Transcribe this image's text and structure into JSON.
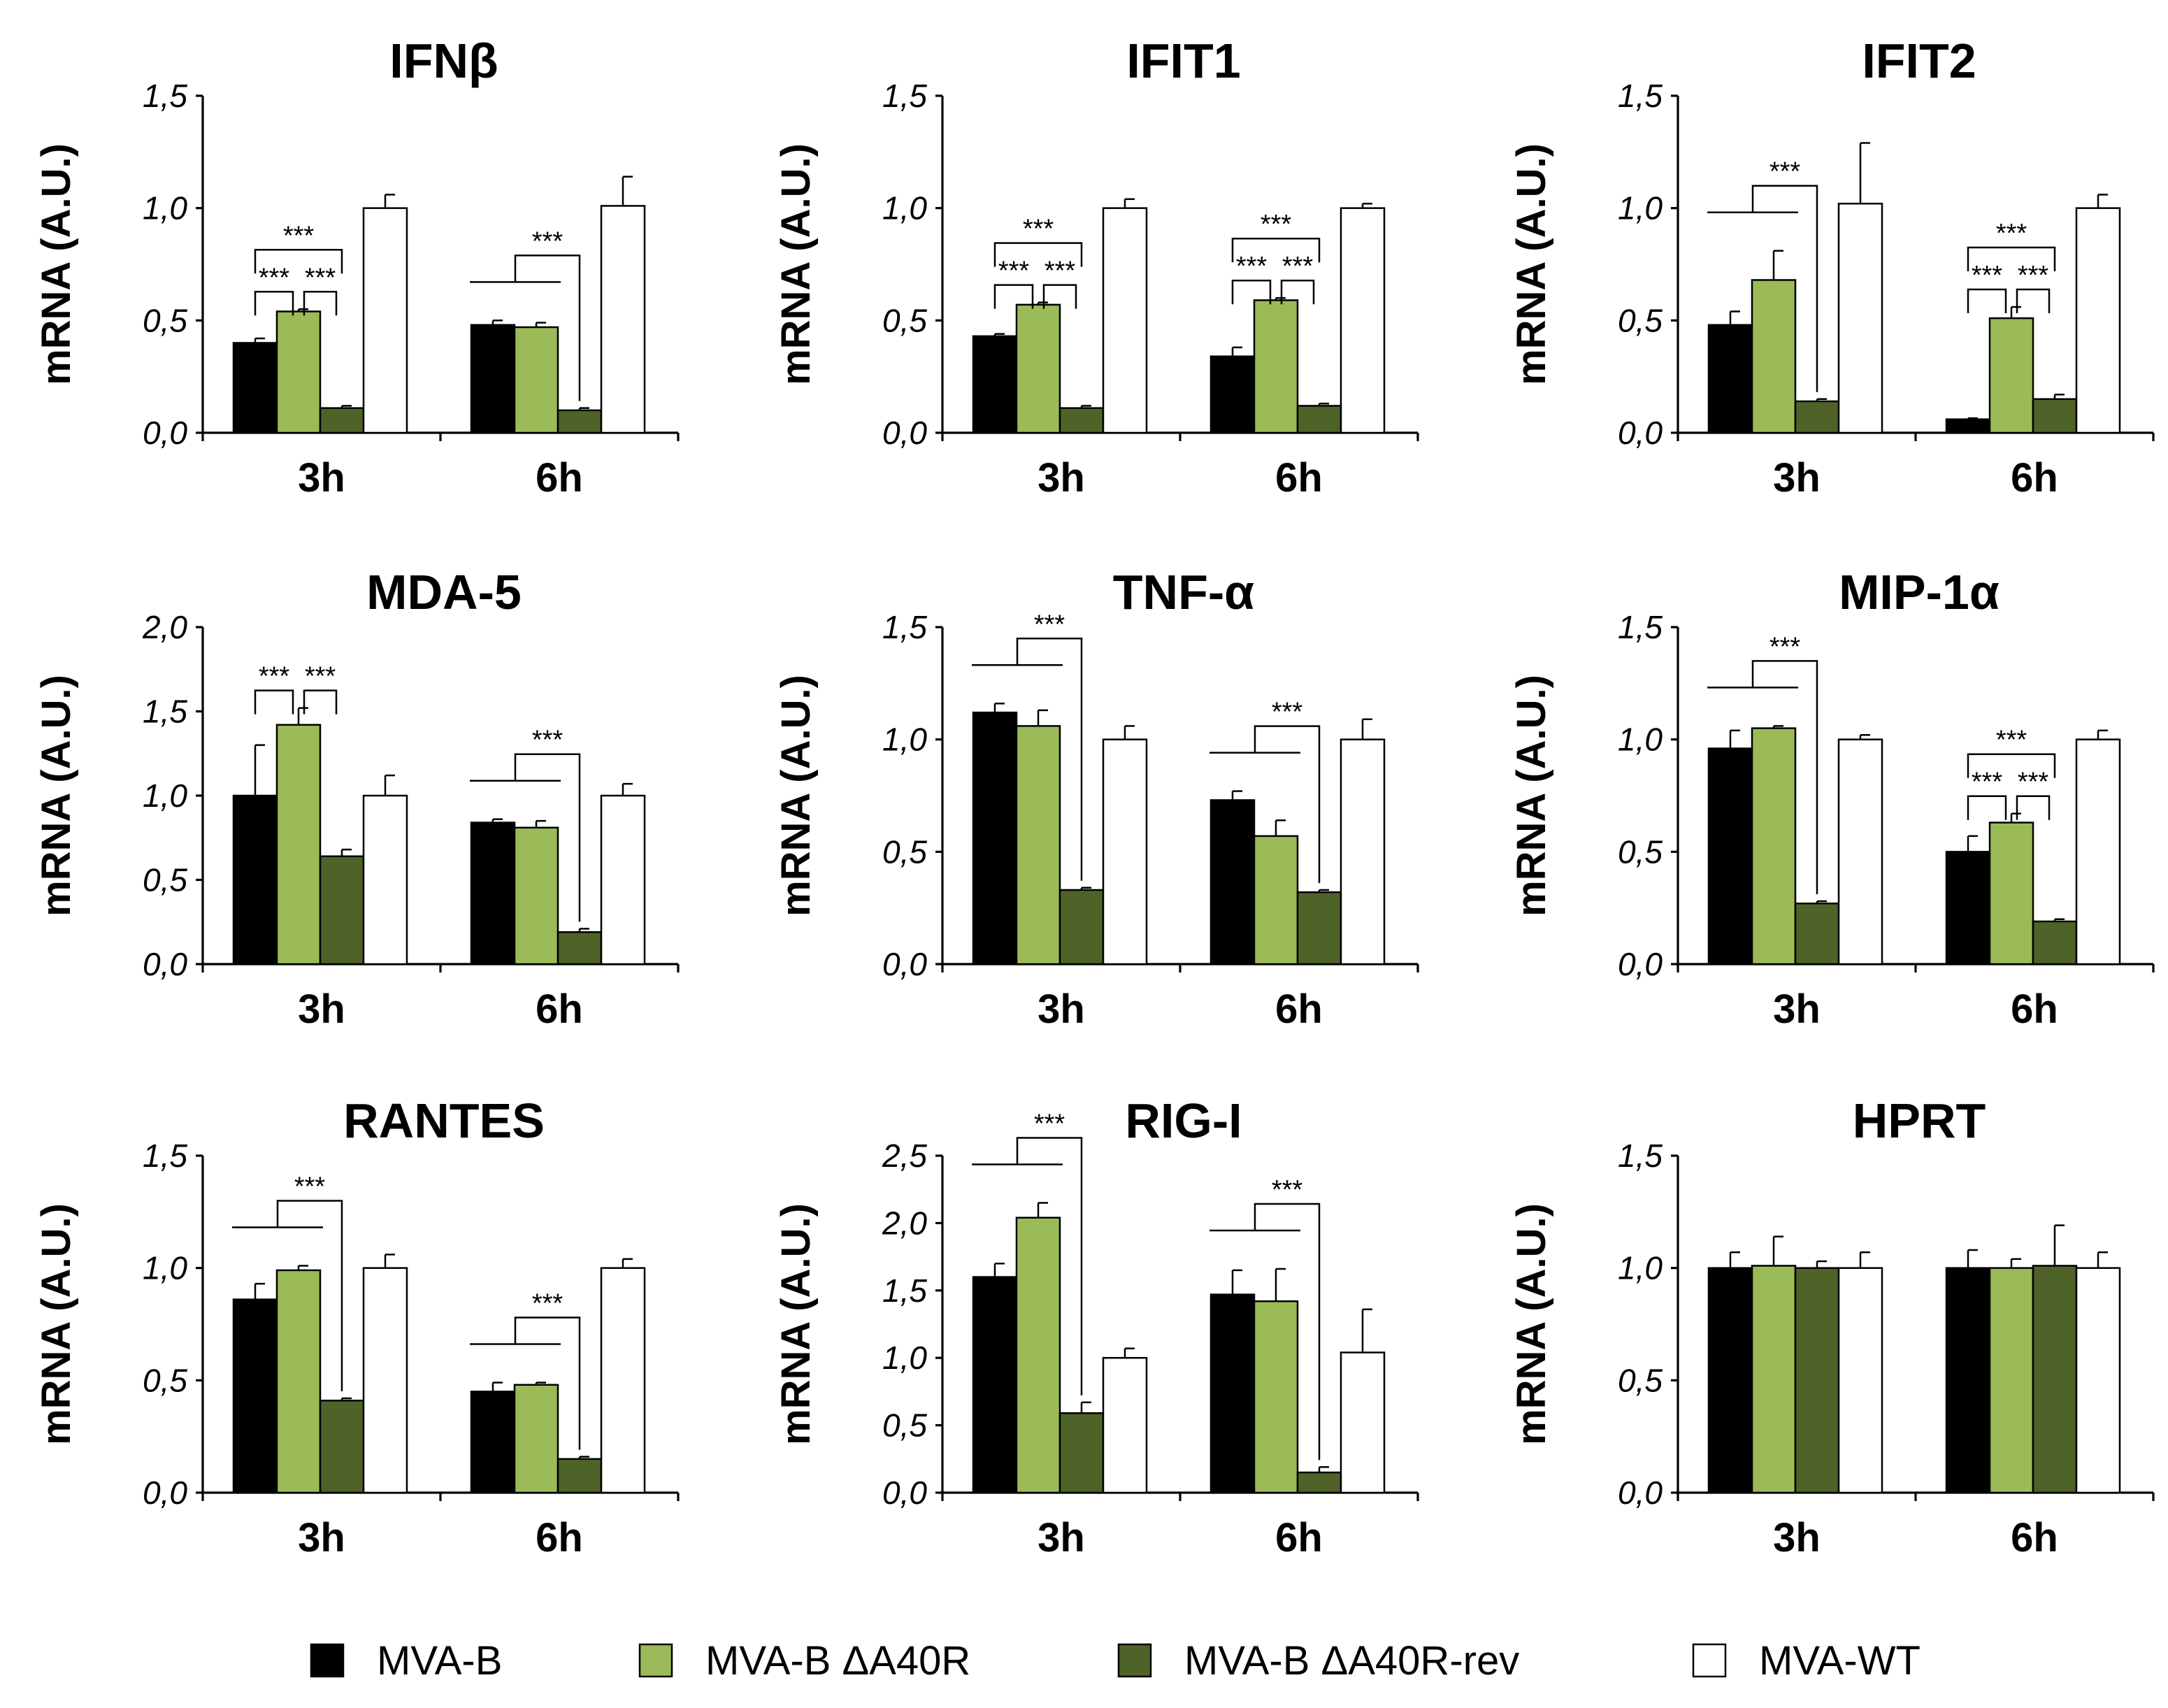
{
  "chart_data": {
    "type": "bar",
    "series": [
      {
        "name": "MVA-B",
        "color": "#000000"
      },
      {
        "name": "MVA-B ΔA40R",
        "color": "#9bbb59"
      },
      {
        "name": "MVA-B ΔA40R-rev",
        "color": "#4f6228"
      },
      {
        "name": "MVA-WT",
        "color": "#ffffff"
      }
    ],
    "panels": [
      {
        "title": "IFNβ",
        "ylabel": "mRNA (A.U.)",
        "ylim": [
          0,
          1.5
        ],
        "yticks": [
          "0,0",
          "0,5",
          "1,0",
          "1,5"
        ],
        "categories": [
          "3h",
          "6h"
        ],
        "values": [
          [
            0.4,
            0.54,
            0.11,
            1.0
          ],
          [
            0.48,
            0.47,
            0.1,
            1.01
          ]
        ],
        "errors": [
          [
            0.02,
            0.01,
            0.01,
            0.06
          ],
          [
            0.02,
            0.02,
            0.01,
            0.13
          ]
        ],
        "significance": [
          {
            "group": 0,
            "type": "simple",
            "a": 0,
            "b": 1,
            "level": 0,
            "label": "***"
          },
          {
            "group": 0,
            "type": "simple",
            "a": 1,
            "b": 2,
            "level": 0,
            "label": "***"
          },
          {
            "group": 0,
            "type": "simple",
            "a": 0,
            "b": 2,
            "level": 1,
            "label": "***"
          },
          {
            "group": 1,
            "type": "combined",
            "a": 0,
            "b": 1,
            "target": 2,
            "label": "***"
          }
        ]
      },
      {
        "title": "IFIT1",
        "ylabel": "mRNA (A.U.)",
        "ylim": [
          0,
          1.5
        ],
        "yticks": [
          "0,0",
          "0,5",
          "1,0",
          "1,5"
        ],
        "categories": [
          "3h",
          "6h"
        ],
        "values": [
          [
            0.43,
            0.57,
            0.11,
            1.0
          ],
          [
            0.34,
            0.59,
            0.12,
            1.0
          ]
        ],
        "errors": [
          [
            0.01,
            0.01,
            0.01,
            0.04
          ],
          [
            0.04,
            0.01,
            0.01,
            0.02
          ]
        ],
        "significance": [
          {
            "group": 0,
            "type": "simple",
            "a": 0,
            "b": 1,
            "level": 0,
            "label": "***"
          },
          {
            "group": 0,
            "type": "simple",
            "a": 1,
            "b": 2,
            "level": 0,
            "label": "***"
          },
          {
            "group": 0,
            "type": "simple",
            "a": 0,
            "b": 2,
            "level": 1,
            "label": "***"
          },
          {
            "group": 1,
            "type": "simple",
            "a": 0,
            "b": 1,
            "level": 0,
            "label": "***"
          },
          {
            "group": 1,
            "type": "simple",
            "a": 1,
            "b": 2,
            "level": 0,
            "label": "***"
          },
          {
            "group": 1,
            "type": "simple",
            "a": 0,
            "b": 2,
            "level": 1,
            "label": "***"
          }
        ]
      },
      {
        "title": "IFIT2",
        "ylabel": "mRNA (A.U.)",
        "ylim": [
          0,
          1.5
        ],
        "yticks": [
          "0,0",
          "0,5",
          "1,0",
          "1,5"
        ],
        "categories": [
          "3h",
          "6h"
        ],
        "values": [
          [
            0.48,
            0.68,
            0.14,
            1.02
          ],
          [
            0.06,
            0.51,
            0.15,
            1.0
          ]
        ],
        "errors": [
          [
            0.06,
            0.13,
            0.01,
            0.27
          ],
          [
            0.005,
            0.05,
            0.02,
            0.06
          ]
        ],
        "significance": [
          {
            "group": 0,
            "type": "combined",
            "a": 0,
            "b": 1,
            "target": 2,
            "label": "***"
          },
          {
            "group": 1,
            "type": "simple",
            "a": 0,
            "b": 1,
            "level": 0,
            "label": "***"
          },
          {
            "group": 1,
            "type": "simple",
            "a": 1,
            "b": 2,
            "level": 0,
            "label": "***"
          },
          {
            "group": 1,
            "type": "simple",
            "a": 0,
            "b": 2,
            "level": 1,
            "label": "***"
          }
        ]
      },
      {
        "title": "MDA-5",
        "ylabel": "mRNA (A.U.)",
        "ylim": [
          0,
          2.0
        ],
        "yticks": [
          "0,0",
          "0,5",
          "1,0",
          "1,5",
          "2,0"
        ],
        "categories": [
          "3h",
          "6h"
        ],
        "values": [
          [
            1.0,
            1.42,
            0.64,
            1.0
          ],
          [
            0.84,
            0.81,
            0.19,
            1.0
          ]
        ],
        "errors": [
          [
            0.3,
            0.1,
            0.04,
            0.12
          ],
          [
            0.02,
            0.04,
            0.02,
            0.07
          ]
        ],
        "significance": [
          {
            "group": 0,
            "type": "simple",
            "a": 0,
            "b": 1,
            "level": 0,
            "label": "***"
          },
          {
            "group": 0,
            "type": "simple",
            "a": 1,
            "b": 2,
            "level": 0,
            "label": "***"
          },
          {
            "group": 1,
            "type": "combined",
            "a": 0,
            "b": 1,
            "target": 2,
            "label": "***"
          }
        ]
      },
      {
        "title": "TNF-α",
        "ylabel": "mRNA (A.U.)",
        "ylim": [
          0,
          1.5
        ],
        "yticks": [
          "0,0",
          "0,5",
          "1,0",
          "1,5"
        ],
        "categories": [
          "3h",
          "6h"
        ],
        "values": [
          [
            1.12,
            1.06,
            0.33,
            1.0
          ],
          [
            0.73,
            0.57,
            0.32,
            1.0
          ]
        ],
        "errors": [
          [
            0.04,
            0.07,
            0.01,
            0.06
          ],
          [
            0.04,
            0.07,
            0.01,
            0.09
          ]
        ],
        "significance": [
          {
            "group": 0,
            "type": "combined",
            "a": 0,
            "b": 1,
            "target": 2,
            "label": "***"
          },
          {
            "group": 1,
            "type": "combined",
            "a": 0,
            "b": 1,
            "target": 2,
            "label": "***"
          }
        ]
      },
      {
        "title": "MIP-1α",
        "ylabel": "mRNA (A.U.)",
        "ylim": [
          0,
          1.5
        ],
        "yticks": [
          "0,0",
          "0,5",
          "1,0",
          "1,5"
        ],
        "categories": [
          "3h",
          "6h"
        ],
        "values": [
          [
            0.96,
            1.05,
            0.27,
            1.0
          ],
          [
            0.5,
            0.63,
            0.19,
            1.0
          ]
        ],
        "errors": [
          [
            0.08,
            0.01,
            0.01,
            0.02
          ],
          [
            0.07,
            0.04,
            0.01,
            0.04
          ]
        ],
        "significance": [
          {
            "group": 0,
            "type": "combined",
            "a": 0,
            "b": 1,
            "target": 2,
            "label": "***"
          },
          {
            "group": 1,
            "type": "simple",
            "a": 0,
            "b": 1,
            "level": 0,
            "label": "***"
          },
          {
            "group": 1,
            "type": "simple",
            "a": 1,
            "b": 2,
            "level": 0,
            "label": "***"
          },
          {
            "group": 1,
            "type": "simple",
            "a": 0,
            "b": 2,
            "level": 1,
            "label": "***"
          }
        ]
      },
      {
        "title": "RANTES",
        "ylabel": "mRNA (A.U.)",
        "ylim": [
          0,
          1.5
        ],
        "yticks": [
          "0,0",
          "0,5",
          "1,0",
          "1,5"
        ],
        "categories": [
          "3h",
          "6h"
        ],
        "values": [
          [
            0.86,
            0.99,
            0.41,
            1.0
          ],
          [
            0.45,
            0.48,
            0.15,
            1.0
          ]
        ],
        "errors": [
          [
            0.07,
            0.02,
            0.01,
            0.06
          ],
          [
            0.04,
            0.01,
            0.01,
            0.04
          ]
        ],
        "significance": [
          {
            "group": 0,
            "type": "combined",
            "a": 0,
            "b": 1,
            "target": 2,
            "label": "***"
          },
          {
            "group": 1,
            "type": "combined",
            "a": 0,
            "b": 1,
            "target": 2,
            "label": "***"
          }
        ]
      },
      {
        "title": "RIG-I",
        "ylabel": "mRNA (A.U.)",
        "ylim": [
          0,
          2.5
        ],
        "yticks": [
          "0,0",
          "0,5",
          "1,0",
          "1,5",
          "2,0",
          "2,5"
        ],
        "categories": [
          "3h",
          "6h"
        ],
        "values": [
          [
            1.6,
            2.04,
            0.59,
            1.0
          ],
          [
            1.47,
            1.42,
            0.15,
            1.04
          ]
        ],
        "errors": [
          [
            0.1,
            0.11,
            0.08,
            0.07
          ],
          [
            0.18,
            0.24,
            0.04,
            0.32
          ]
        ],
        "significance": [
          {
            "group": 0,
            "type": "combined",
            "a": 0,
            "b": 1,
            "target": 2,
            "label": "***"
          },
          {
            "group": 1,
            "type": "combined",
            "a": 0,
            "b": 1,
            "target": 2,
            "label": "***"
          }
        ]
      },
      {
        "title": "HPRT",
        "ylabel": "mRNA (A.U.)",
        "ylim": [
          0,
          1.5
        ],
        "yticks": [
          "0,0",
          "0,5",
          "1,0",
          "1,5"
        ],
        "categories": [
          "3h",
          "6h"
        ],
        "values": [
          [
            1.0,
            1.01,
            1.0,
            1.0
          ],
          [
            1.0,
            1.0,
            1.01,
            1.0
          ]
        ],
        "errors": [
          [
            0.07,
            0.13,
            0.03,
            0.07
          ],
          [
            0.08,
            0.04,
            0.18,
            0.07
          ]
        ],
        "significance": []
      }
    ]
  }
}
